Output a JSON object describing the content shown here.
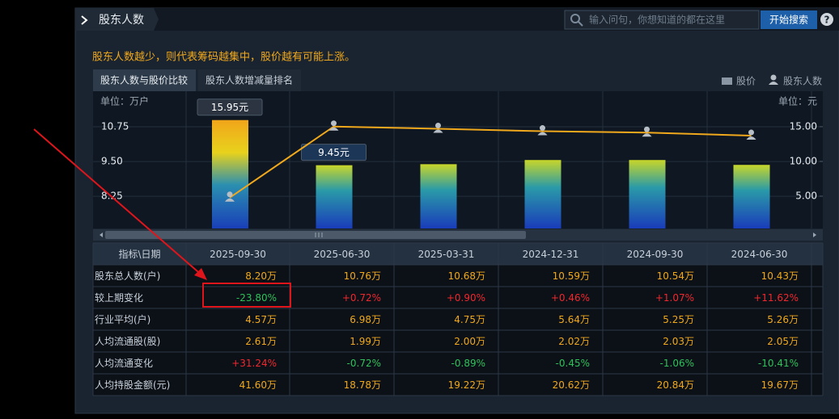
{
  "header": {
    "title": "股东人数",
    "search_placeholder": "输入问句，你想知道的都在这里",
    "search_button": "开始搜索",
    "help": "?"
  },
  "notice": "股东人数越少，则代表筹码越集中，股价越有可能上涨。",
  "tabs": [
    "股东人数与股价比较",
    "股东人数增减量排名"
  ],
  "chart_data": {
    "type": "bar-line",
    "ylabel": "单位：万户",
    "y2label": "单位：元",
    "ylim": [
      7.09,
      12.03
    ],
    "yticks": [
      10.75,
      {
        "value": 9.5,
        "label": "9.50"
      },
      8.25
    ],
    "y2lim": [
      0.35,
      20.1
    ],
    "y2ticks": [
      {
        "value": 15,
        "label": "15.00"
      },
      {
        "value": 10,
        "label": "10.00"
      },
      {
        "value": 5,
        "label": "5.00"
      }
    ],
    "grid": true,
    "series": [
      {
        "name": "股价",
        "type": "bar",
        "axis": "y2",
        "values": [
          15.95,
          9.45,
          9.6,
          10.2,
          10.2,
          9.5
        ],
        "value_labels": [
          "15.95元",
          "9.45元",
          null,
          null,
          null,
          null
        ]
      },
      {
        "name": "股东人数",
        "type": "line",
        "color": "#f0a81c",
        "values": [
          8.2,
          10.76,
          10.68,
          10.59,
          10.54,
          10.43
        ]
      }
    ]
  },
  "table": {
    "header": [
      "指标\\日期",
      "2025-09-30",
      "2025-06-30",
      "2025-03-31",
      "2024-12-31",
      "2024-09-30",
      "2024-06-30"
    ],
    "rows": [
      [
        "股东总人数(户)",
        "8.20万",
        "10.76万",
        "10.68万",
        "10.59万",
        "10.54万",
        "10.43万"
      ],
      [
        "较上期变化",
        "-23.80%",
        "+0.72%",
        "+0.90%",
        "+0.46%",
        "+1.07%",
        "+11.62%"
      ],
      [
        "行业平均(户)",
        "4.57万",
        "6.98万",
        "4.75万",
        "5.64万",
        "5.25万",
        "5.26万"
      ],
      [
        "人均流通股(股)",
        "2.61万",
        "1.99万",
        "2.00万",
        "2.02万",
        "2.03万",
        "2.05万"
      ],
      [
        "人均流通变化",
        "+31.24%",
        "-0.72%",
        "-0.89%",
        "-0.45%",
        "-1.06%",
        "-10.41%"
      ],
      [
        "人均持股金额(元)",
        "41.60万",
        "18.78万",
        "19.22万",
        "20.62万",
        "20.84万",
        "19.67万"
      ]
    ]
  }
}
